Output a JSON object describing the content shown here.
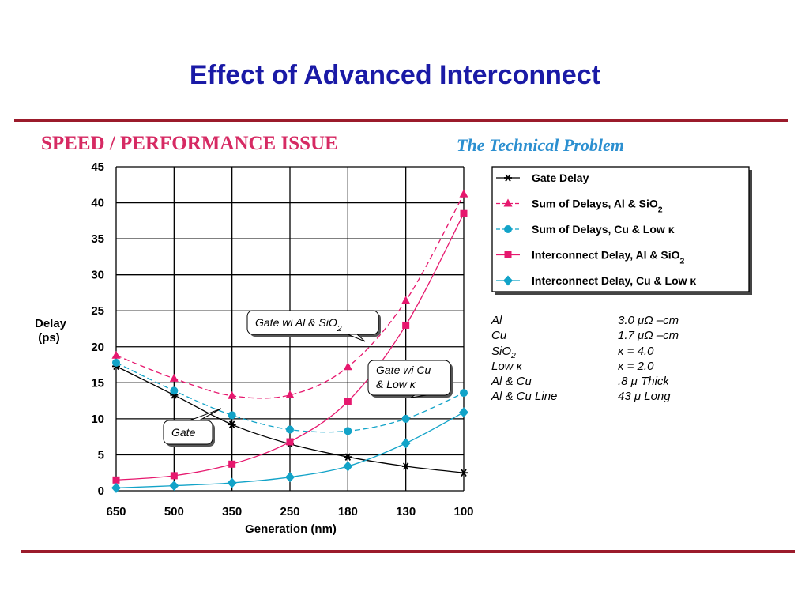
{
  "slide": {
    "title": "Effect of Advanced Interconnect",
    "header_left": "SPEED / PERFORMANCE ISSUE",
    "header_right": "The Technical Problem"
  },
  "chart_data": {
    "type": "line",
    "xlabel": "Generation (nm)",
    "ylabel": [
      "Delay",
      "(ps)"
    ],
    "categories": [
      "650",
      "500",
      "350",
      "250",
      "180",
      "130",
      "100"
    ],
    "ylim": [
      0,
      45
    ],
    "yticks": [
      "0",
      "5",
      "10",
      "15",
      "20",
      "25",
      "30",
      "35",
      "40",
      "45"
    ],
    "grid": true,
    "legend_position": "top-right",
    "series": [
      {
        "name": "Gate Delay",
        "marker": "star",
        "color": "#000000",
        "dashed": false,
        "values": [
          17.3,
          13.3,
          9.2,
          6.5,
          4.7,
          3.4,
          2.5
        ]
      },
      {
        "name": "Sum of Delays, Al & SiO2",
        "marker": "triangle",
        "color": "#e6186e",
        "dashed": true,
        "values": [
          18.8,
          15.6,
          13.2,
          13.3,
          17.2,
          26.4,
          41.2
        ]
      },
      {
        "name": "Sum of Delays, Cu & Low κ",
        "marker": "circle",
        "color": "#12a3c8",
        "dashed": true,
        "values": [
          17.8,
          13.9,
          10.5,
          8.5,
          8.3,
          10.0,
          13.6
        ]
      },
      {
        "name": "Interconnect Delay, Al & SiO2",
        "marker": "square",
        "color": "#e6186e",
        "dashed": false,
        "values": [
          1.5,
          2.1,
          3.7,
          6.8,
          12.4,
          23.0,
          38.5
        ]
      },
      {
        "name": "Interconnect Delay, Cu & Low κ",
        "marker": "diamond",
        "color": "#12a3c8",
        "dashed": false,
        "values": [
          0.4,
          0.7,
          1.1,
          1.9,
          3.4,
          6.6,
          10.9
        ]
      }
    ],
    "annotations": [
      {
        "text": "Gate wi Al & SiO2"
      },
      {
        "text": [
          "Gate wi Cu",
          "& Low κ"
        ]
      },
      {
        "text": "Gate"
      }
    ]
  },
  "properties": [
    {
      "name": "Al",
      "value": "3.0 μΩ –cm"
    },
    {
      "name": "Cu",
      "value": "1.7 μΩ –cm"
    },
    {
      "name": "SiO2",
      "value": "κ = 4.0"
    },
    {
      "name": "Low κ",
      "value": "κ = 2.0"
    },
    {
      "name": "Al & Cu",
      "value": ".8 μ Thick"
    },
    {
      "name": "Al & Cu Line",
      "value": "43 μ Long"
    }
  ]
}
